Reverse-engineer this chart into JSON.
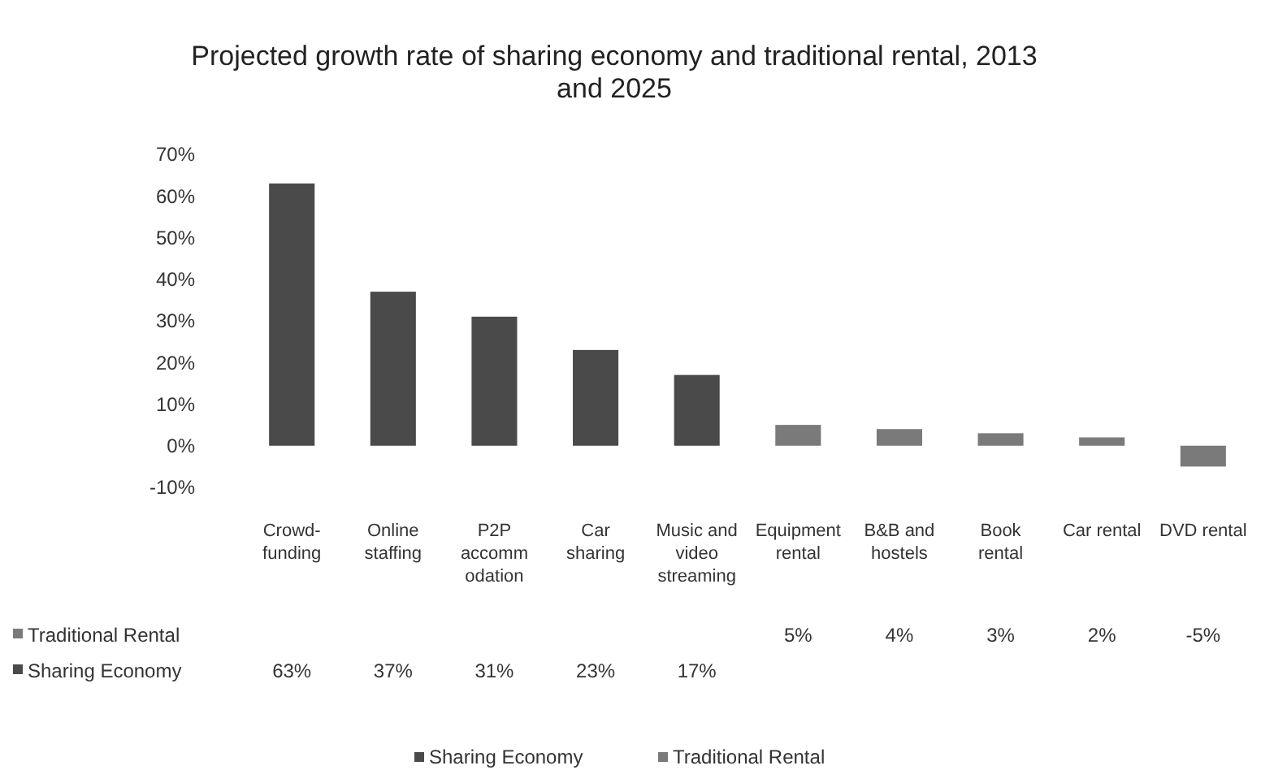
{
  "chart_data": {
    "type": "bar",
    "title": "Projected growth rate of sharing economy and traditional rental, 2013 and 2025",
    "categories": [
      "Crowd-funding",
      "Online staffing",
      "P2P accommodation",
      "Car sharing",
      "Music and video streaming",
      "Equipment rental",
      "B&B and hostels",
      "Book rental",
      "Car rental",
      "DVD rental"
    ],
    "series": [
      {
        "name": "Sharing Economy",
        "color": "#4a4a4a",
        "values": [
          63,
          37,
          31,
          23,
          17,
          null,
          null,
          null,
          null,
          null
        ],
        "value_labels": [
          "63%",
          "37%",
          "31%",
          "23%",
          "17%",
          null,
          null,
          null,
          null,
          null
        ]
      },
      {
        "name": "Traditional Rental",
        "color": "#7a7a7a",
        "values": [
          null,
          null,
          null,
          null,
          null,
          5,
          4,
          3,
          2,
          -5
        ],
        "value_labels": [
          null,
          null,
          null,
          null,
          null,
          "5%",
          "4%",
          "3%",
          "2%",
          "-5%"
        ]
      }
    ],
    "ylim": [
      -10,
      70
    ],
    "yticks": [
      {
        "value": -10,
        "label": "-10%"
      },
      {
        "value": 0,
        "label": "0%"
      },
      {
        "value": 10,
        "label": "10%"
      },
      {
        "value": 20,
        "label": "20%"
      },
      {
        "value": 30,
        "label": "30%"
      },
      {
        "value": 40,
        "label": "40%"
      },
      {
        "value": 50,
        "label": "50%"
      },
      {
        "value": 60,
        "label": "60%"
      },
      {
        "value": 70,
        "label": "70%"
      }
    ],
    "grid": false,
    "legend": "bottom"
  }
}
